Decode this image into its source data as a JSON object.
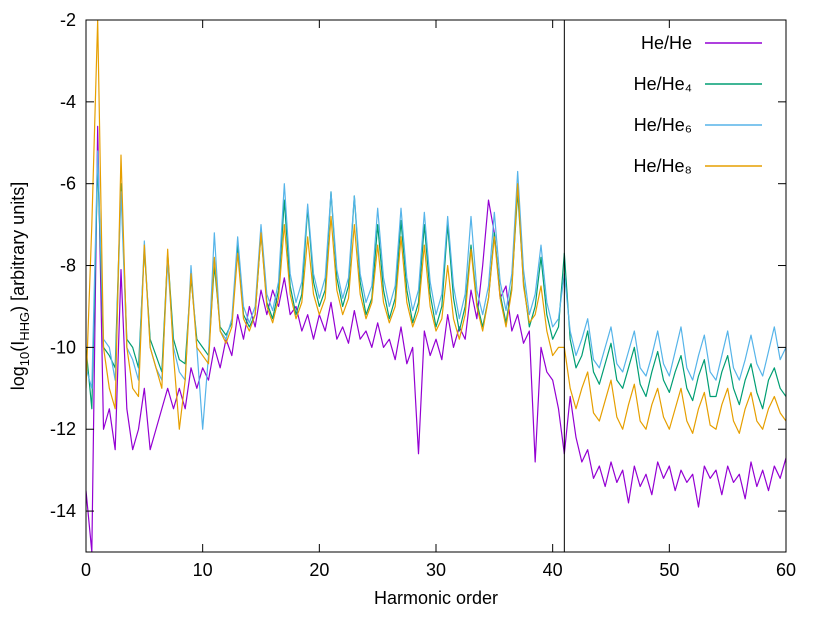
{
  "chart_data": {
    "type": "line",
    "xlabel": "Harmonic order",
    "ylabel": [
      "log",
      "10",
      "(I",
      "HHG",
      ") [arbitrary units]"
    ],
    "xlim": [
      0,
      60
    ],
    "ylim": [
      -15,
      -2
    ],
    "xticks": [
      0,
      10,
      20,
      30,
      40,
      50,
      60
    ],
    "yticks": [
      -2,
      -4,
      -6,
      -8,
      -10,
      -12,
      -14
    ],
    "vline": 41,
    "legend": "upper right",
    "x": [
      0,
      0.5,
      1,
      1.5,
      2,
      2.5,
      3,
      3.5,
      4,
      4.5,
      5,
      5.5,
      6,
      6.5,
      7,
      7.5,
      8,
      8.5,
      9,
      9.5,
      10,
      10.5,
      11,
      11.5,
      12,
      12.5,
      13,
      13.5,
      14,
      14.5,
      15,
      15.5,
      16,
      16.5,
      17,
      17.5,
      18,
      18.5,
      19,
      19.5,
      20,
      20.5,
      21,
      21.5,
      22,
      22.5,
      23,
      23.5,
      24,
      24.5,
      25,
      25.5,
      26,
      26.5,
      27,
      27.5,
      28,
      28.5,
      29,
      29.5,
      30,
      30.5,
      31,
      31.5,
      32,
      32.5,
      33,
      33.5,
      34,
      34.5,
      35,
      35.5,
      36,
      36.5,
      37,
      37.5,
      38,
      38.5,
      39,
      39.5,
      40,
      40.5,
      41,
      41.5,
      42,
      42.5,
      43,
      43.5,
      44,
      44.5,
      45,
      45.5,
      46,
      46.5,
      47,
      47.5,
      48,
      48.5,
      49,
      49.5,
      50,
      50.5,
      51,
      51.5,
      52,
      52.5,
      53,
      53.5,
      54,
      54.5,
      55,
      55.5,
      56,
      56.5,
      57,
      57.5,
      58,
      58.5,
      59,
      59.5,
      60
    ],
    "series": [
      {
        "name": "He/He",
        "color": "#9400d3",
        "values": [
          -13.5,
          -15,
          -4.6,
          -12,
          -11.5,
          -12.5,
          -8.1,
          -11.5,
          -12.5,
          -12,
          -11,
          -12.5,
          -12,
          -11.5,
          -11,
          -11.5,
          -11,
          -11.5,
          -10.5,
          -11,
          -10.5,
          -10.8,
          -10,
          -10.5,
          -9.8,
          -10.2,
          -9.2,
          -9.8,
          -9,
          -9.5,
          -8.6,
          -9.2,
          -8.6,
          -9,
          -8.3,
          -9.2,
          -9,
          -9.6,
          -9.2,
          -9.8,
          -9.2,
          -9.6,
          -8.9,
          -9.8,
          -9.5,
          -9.9,
          -9.1,
          -9.8,
          -9.6,
          -10,
          -9.4,
          -10,
          -9.8,
          -10.3,
          -9.5,
          -10.4,
          -10,
          -12.6,
          -9.6,
          -10.2,
          -9.8,
          -10.3,
          -9.2,
          -10,
          -9.5,
          -9.8,
          -8.6,
          -9.3,
          -8,
          -6.4,
          -7.2,
          -8.8,
          -8.5,
          -9.6,
          -9.2,
          -9.9,
          -9.6,
          -12.8,
          -10,
          -10.6,
          -10.8,
          -11.5,
          -12.6,
          -11.2,
          -12.2,
          -12.8,
          -12.5,
          -13.2,
          -12.9,
          -13.4,
          -12.8,
          -13.3,
          -13,
          -13.8,
          -12.9,
          -13.4,
          -13.1,
          -13.6,
          -12.8,
          -13.2,
          -12.9,
          -13.5,
          -13,
          -13.3,
          -13.1,
          -13.9,
          -12.9,
          -13.2,
          -13,
          -13.6,
          -12.9,
          -13.3,
          -13.1,
          -13.7,
          -12.8,
          -13.4,
          -13,
          -13.5,
          -12.9,
          -13.2,
          -12.7
        ]
      },
      {
        "name": "He/He₄",
        "color": "#009e73",
        "values": [
          -10,
          -11.5,
          -5.5,
          -10,
          -10.2,
          -10.5,
          -6,
          -9.8,
          -10,
          -10.5,
          -7.6,
          -9.8,
          -10.2,
          -10.6,
          -7.7,
          -9.8,
          -10.3,
          -10.4,
          -8.3,
          -9.8,
          -10,
          -10.2,
          -8,
          -9.5,
          -9.7,
          -9.4,
          -7.5,
          -9.2,
          -9.5,
          -9.2,
          -7.2,
          -8.9,
          -9.3,
          -8.6,
          -6.4,
          -8.5,
          -9.2,
          -8.7,
          -6.6,
          -8.4,
          -9,
          -8.6,
          -6.2,
          -8.3,
          -9,
          -8.5,
          -6.3,
          -8.4,
          -9.2,
          -8.8,
          -7,
          -8.6,
          -9.3,
          -8.8,
          -6.9,
          -8.6,
          -9.4,
          -8.9,
          -7,
          -8.7,
          -9.5,
          -9,
          -7,
          -8.8,
          -9.6,
          -9,
          -7.5,
          -8.9,
          -9.5,
          -8.8,
          -7.2,
          -8.7,
          -9.4,
          -8.5,
          -6.2,
          -8.4,
          -9.5,
          -9,
          -7.8,
          -9.2,
          -9.8,
          -9.5,
          -7.7,
          -9.8,
          -10.5,
          -10.2,
          -9.6,
          -10.6,
          -10.9,
          -10.4,
          -9.9,
          -10.8,
          -11,
          -10.5,
          -10,
          -10.9,
          -11.2,
          -10.6,
          -10.1,
          -10.8,
          -11.1,
          -10.6,
          -10.2,
          -11,
          -11.3,
          -10.7,
          -10.3,
          -11.2,
          -11.2,
          -10.6,
          -10.2,
          -11,
          -11.4,
          -10.8,
          -10.4,
          -11.1,
          -11.5,
          -10.8,
          -10.5,
          -11,
          -11.2
        ]
      },
      {
        "name": "He/He₆",
        "color": "#56b4e9",
        "values": [
          -10.5,
          -11,
          -5.2,
          -9.8,
          -10,
          -10.8,
          -6.2,
          -10,
          -10.3,
          -10.8,
          -7.4,
          -10,
          -10.5,
          -10.8,
          -7.9,
          -10,
          -10.6,
          -10.8,
          -8,
          -10,
          -12,
          -10.2,
          -7.2,
          -9.6,
          -9.8,
          -9.3,
          -7.3,
          -9,
          -9.4,
          -9,
          -7,
          -8.7,
          -9.1,
          -8.4,
          -6,
          -8.2,
          -8.9,
          -8.4,
          -6.5,
          -8.2,
          -8.8,
          -8.3,
          -6.2,
          -8.1,
          -8.8,
          -8.3,
          -6.3,
          -8.2,
          -8.9,
          -8.5,
          -6.6,
          -8.3,
          -9,
          -8.5,
          -6.6,
          -8.3,
          -9.1,
          -8.6,
          -6.7,
          -8.4,
          -9.2,
          -8.7,
          -6.8,
          -8.5,
          -9.3,
          -8.7,
          -6.8,
          -8.6,
          -9.2,
          -8.5,
          -6.7,
          -8.4,
          -9.1,
          -8.2,
          -5.7,
          -8.1,
          -9.2,
          -8.7,
          -7.5,
          -8.9,
          -9.5,
          -9.3,
          -8.2,
          -9.6,
          -10.2,
          -9.8,
          -9.3,
          -10.3,
          -10.5,
          -10,
          -9.5,
          -10.4,
          -10.6,
          -10.1,
          -9.6,
          -10.5,
          -10.7,
          -10.2,
          -9.6,
          -10.4,
          -10.7,
          -10.1,
          -9.5,
          -10.5,
          -10.8,
          -10.2,
          -9.7,
          -10.6,
          -10.8,
          -10.2,
          -9.6,
          -10.5,
          -10.8,
          -10.3,
          -9.7,
          -10.4,
          -10.7,
          -10.1,
          -9.5,
          -10.3,
          -10
        ]
      },
      {
        "name": "He/He₈",
        "color": "#e69f00",
        "values": [
          -11,
          -7,
          -2,
          -10,
          -11,
          -11.5,
          -5.3,
          -10,
          -11,
          -11.2,
          -7.5,
          -10,
          -10.5,
          -11,
          -7.6,
          -10.2,
          -12,
          -10.8,
          -8.2,
          -10,
          -10.2,
          -10.4,
          -7.8,
          -9.6,
          -9.9,
          -9.5,
          -7.7,
          -9.3,
          -9.6,
          -9.2,
          -7.2,
          -9,
          -9.4,
          -8.8,
          -7,
          -8.7,
          -9.3,
          -8.9,
          -7.3,
          -8.7,
          -9.2,
          -8.8,
          -6.8,
          -8.6,
          -9.2,
          -8.8,
          -7,
          -8.7,
          -9.3,
          -8.9,
          -7.5,
          -8.9,
          -9.4,
          -9,
          -7.3,
          -8.9,
          -9.5,
          -9.1,
          -7.5,
          -9,
          -9.6,
          -9.3,
          -8,
          -9.3,
          -9.8,
          -9.2,
          -7.6,
          -9,
          -9.6,
          -8.8,
          -7.3,
          -8.8,
          -9.5,
          -8.6,
          -6,
          -8.5,
          -9.4,
          -9.2,
          -8.5,
          -9.6,
          -10.2,
          -10,
          -10,
          -11,
          -11.5,
          -11,
          -10.6,
          -11.6,
          -11.8,
          -11.3,
          -10.8,
          -11.7,
          -12,
          -11.4,
          -10.9,
          -11.8,
          -12,
          -11.4,
          -11,
          -11.7,
          -12,
          -11.5,
          -11,
          -11.8,
          -12.1,
          -11.5,
          -11.1,
          -11.9,
          -12,
          -11.4,
          -11,
          -11.8,
          -12.1,
          -11.5,
          -11.1,
          -11.8,
          -12,
          -11.5,
          -11.2,
          -11.6,
          -11.8
        ]
      }
    ]
  }
}
